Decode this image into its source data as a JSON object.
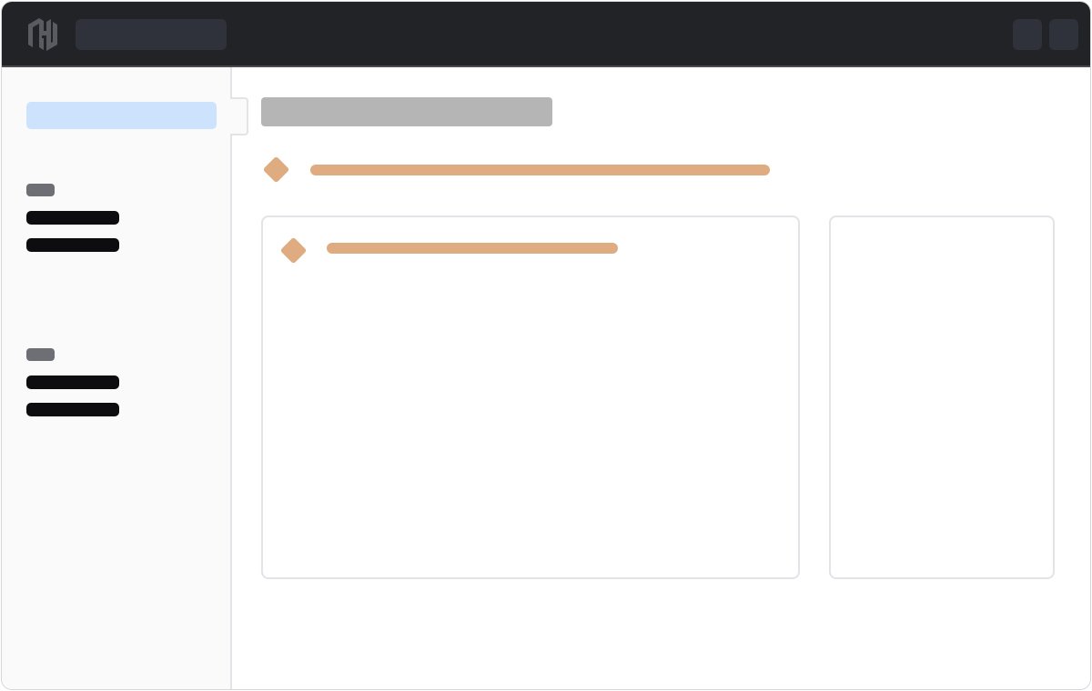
{
  "colors": {
    "topbar": "#222327",
    "sidebar": "#fafafa",
    "active_item": "#cde3fd",
    "accent": "#deac80",
    "title_placeholder": "#b5b5b5",
    "text_placeholder": "#0d0d0f"
  },
  "topbar": {
    "logo_icon": "hashicorp-logo-icon",
    "search": {
      "placeholder": ""
    },
    "buttons": [
      {
        "icon": ""
      },
      {
        "icon": ""
      }
    ]
  },
  "sidebar": {
    "groups": [
      {
        "heading": "",
        "items": [
          {
            "label": ""
          },
          {
            "label": ""
          }
        ]
      },
      {
        "heading": "",
        "items": [
          {
            "label": ""
          },
          {
            "label": ""
          }
        ]
      }
    ]
  },
  "main": {
    "title": "",
    "alert": {
      "icon": "diamond-icon",
      "text": ""
    },
    "card": {
      "icon": "diamond-icon",
      "text": ""
    }
  }
}
